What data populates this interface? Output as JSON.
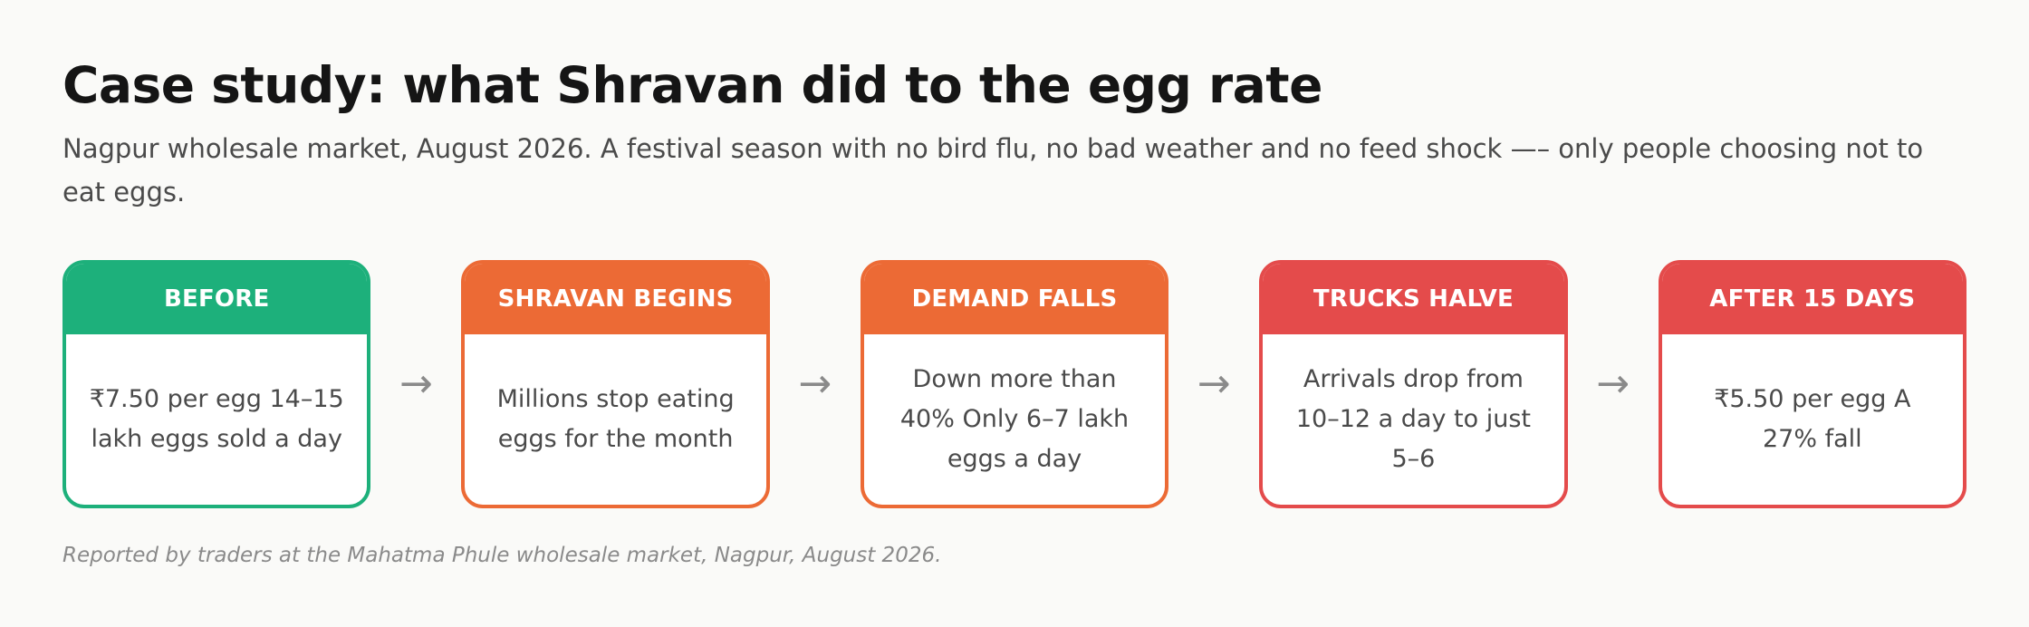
{
  "title": "Case study: what Shravan did to the egg rate",
  "subtitle": "Nagpur wholesale market, August 2026. A festival season with no bird flu, no bad weather and no feed shock —– only people choosing not to eat eggs.",
  "steps": [
    {
      "label": "BEFORE",
      "text": "₹7.50 per egg 14–15 lakh eggs sold a day",
      "color": "#1db07b"
    },
    {
      "label": "SHRAVAN BEGINS",
      "text": "Millions stop eating eggs for the month",
      "color": "#ec6a35"
    },
    {
      "label": "DEMAND FALLS",
      "text": "Down more than 40% Only 6–7 lakh eggs a day",
      "color": "#ec6a35"
    },
    {
      "label": "TRUCKS HALVE",
      "text": "Arrivals drop from 10–12 a day to just 5–6",
      "color": "#e44b4b"
    },
    {
      "label": "AFTER 15 DAYS",
      "text": "₹5.50 per egg A 27% fall",
      "color": "#e44b4b"
    }
  ],
  "arrow_glyph": "→",
  "source": "Reported by traders at the Mahatma Phule wholesale market, Nagpur, August 2026."
}
